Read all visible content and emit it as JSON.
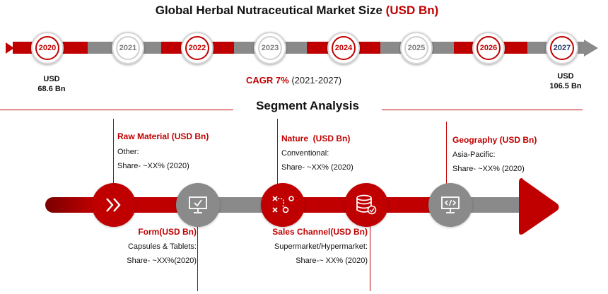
{
  "title": {
    "main": "Global Herbal Nutraceutical Market Size",
    "unit": "(USD Bn)"
  },
  "timeline": {
    "years": [
      {
        "label": "2020",
        "style": "red"
      },
      {
        "label": "2021",
        "style": "gray"
      },
      {
        "label": "2022",
        "style": "red"
      },
      {
        "label": "2023",
        "style": "gray"
      },
      {
        "label": "2024",
        "style": "red"
      },
      {
        "label": "2025",
        "style": "gray"
      },
      {
        "label": "2026",
        "style": "red"
      },
      {
        "label": "2027",
        "style": "dark"
      }
    ],
    "start_value": {
      "unit": "USD",
      "amount": "68.6 Bn"
    },
    "end_value": {
      "unit": "USD",
      "amount": "106.5 Bn"
    },
    "cagr": {
      "label": "CAGR 7%",
      "period": "(2021-2027)"
    }
  },
  "segment_analysis": {
    "title": "Segment Analysis",
    "segments": [
      {
        "heading": "Raw Material (USD Bn)",
        "line1": "Other:",
        "line2": "Share- ~XX% (2020)",
        "icon": "double-chevron-right-icon"
      },
      {
        "heading": "Form(USD Bn)",
        "line1": "Capsules & Tablets:",
        "line2": "Share- ~XX%(2020)",
        "icon": "monitor-check-icon"
      },
      {
        "heading": "Nature  (USD Bn)",
        "line1": "Conventional:",
        "line2": "Share- ~XX% (2020)",
        "icon": "strategy-icon"
      },
      {
        "heading": "Sales Channel(USD Bn)",
        "line1": "Supermarket/Hypermarket:",
        "line2": "Share-~ XX% (2020)",
        "icon": "database-check-icon"
      },
      {
        "heading": "Geography (USD Bn)",
        "line1": "Asia-Pacific:",
        "line2": "Share- ~XX% (2020)",
        "icon": "monitor-code-icon"
      }
    ]
  },
  "colors": {
    "accent": "#c00000",
    "neutral": "#8a8a8a",
    "dark_year": "#1f3864"
  }
}
